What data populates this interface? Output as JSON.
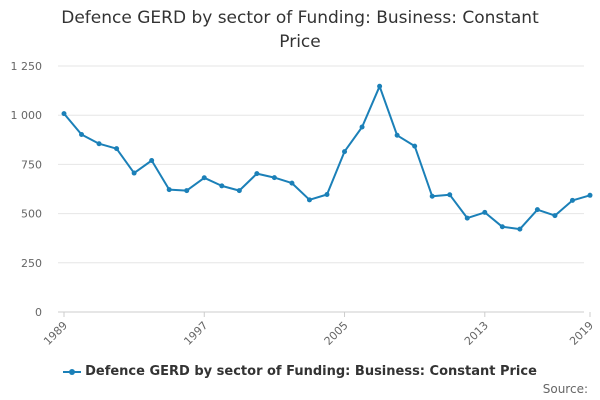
{
  "colors": {
    "series": "#1b80b8",
    "grid": "#e6e6e6",
    "axis_text": "#666666"
  },
  "chart_data": {
    "type": "line",
    "title": "Defence GERD by sector of Funding: Business: Constant Price",
    "xlabel": "",
    "ylabel": "",
    "xlim": [
      1989,
      2019
    ],
    "ylim": [
      0,
      1250
    ],
    "yticks": [
      0,
      250,
      500,
      750,
      1000,
      1250
    ],
    "ytick_labels": [
      "0",
      "250",
      "500",
      "750",
      "1 000",
      "1 250"
    ],
    "xticks": [
      1989,
      1997,
      2005,
      2013,
      2019
    ],
    "xtick_labels": [
      "1989",
      "1997",
      "2005",
      "2013",
      "2019"
    ],
    "grid": true,
    "legend_position": "bottom",
    "series": [
      {
        "name": "Defence GERD by sector of Funding: Business: Constant Price",
        "x": [
          1989,
          1990,
          1991,
          1992,
          1993,
          1994,
          1995,
          1996,
          1997,
          1998,
          1999,
          2000,
          2001,
          2002,
          2003,
          2004,
          2005,
          2006,
          2007,
          2008,
          2009,
          2010,
          2011,
          2012,
          2013,
          2014,
          2015,
          2016,
          2017,
          2018,
          2019
        ],
        "values": [
          1008,
          902,
          855,
          830,
          706,
          770,
          622,
          617,
          682,
          641,
          617,
          703,
          683,
          655,
          570,
          597,
          815,
          940,
          1147,
          898,
          843,
          588,
          596,
          477,
          506,
          433,
          421,
          520,
          490,
          567,
          593
        ]
      }
    ]
  },
  "footer": {
    "source_label": "Source:"
  }
}
